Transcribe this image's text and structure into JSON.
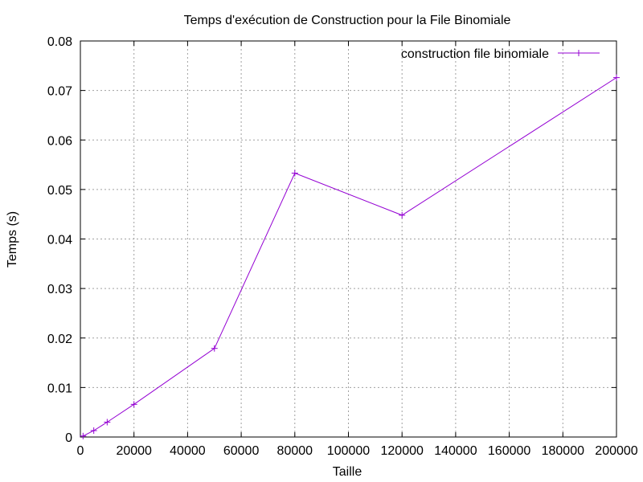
{
  "chart_data": {
    "type": "line",
    "title": "Temps d'exécution de Construction pour la File Binomiale",
    "xlabel": "Taille",
    "ylabel": "Temps (s)",
    "xlim": [
      0,
      200000
    ],
    "ylim": [
      0,
      0.08
    ],
    "xticks": [
      0,
      20000,
      40000,
      60000,
      80000,
      100000,
      120000,
      140000,
      160000,
      180000,
      200000
    ],
    "yticks": [
      0,
      0.01,
      0.02,
      0.03,
      0.04,
      0.05,
      0.06,
      0.07,
      0.08
    ],
    "xtick_labels": [
      "0",
      "20000",
      "40000",
      "60000",
      "80000",
      "100000",
      "120000",
      "140000",
      "160000",
      "180000",
      "200000"
    ],
    "ytick_labels": [
      "0",
      "0.01",
      "0.02",
      "0.03",
      "0.04",
      "0.05",
      "0.06",
      "0.07",
      "0.08"
    ],
    "grid": true,
    "legend_position": "top-right",
    "series": [
      {
        "name": "construction file binomiale",
        "color": "#9400d3",
        "marker": "plus",
        "x": [
          1000,
          5000,
          10000,
          20000,
          50000,
          80000,
          120000,
          200000
        ],
        "y": [
          0.0002,
          0.0013,
          0.003,
          0.0066,
          0.0179,
          0.0533,
          0.0448,
          0.0726
        ]
      }
    ]
  }
}
